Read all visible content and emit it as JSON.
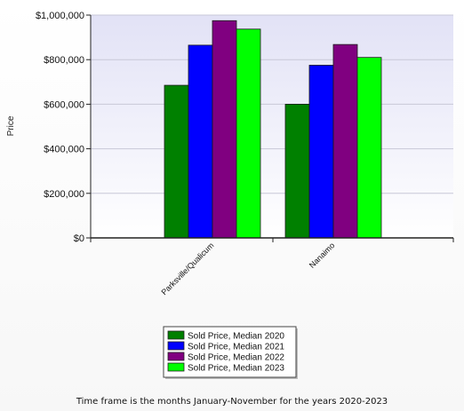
{
  "chart_data": {
    "type": "bar",
    "ylabel": "Price",
    "xlabel": "",
    "ylim": [
      0,
      1000000
    ],
    "y_ticks": [
      0,
      200000,
      400000,
      600000,
      800000,
      1000000
    ],
    "y_tick_labels": [
      "$0",
      "$200,000",
      "$400,000",
      "$600,000",
      "$800,000",
      "$1,000,000"
    ],
    "categories": [
      "Parksville/Qualicum",
      "Nanaimo"
    ],
    "series": [
      {
        "name": "Sold Price, Median 2020",
        "color": "#008000",
        "values": [
          685000,
          600000
        ]
      },
      {
        "name": "Sold Price, Median 2021",
        "color": "#0000ff",
        "values": [
          865000,
          775000
        ]
      },
      {
        "name": "Sold Price, Median 2022",
        "color": "#800080",
        "values": [
          975000,
          868000
        ]
      },
      {
        "name": "Sold Price, Median 2023",
        "color": "#00ff00",
        "values": [
          937000,
          810000
        ]
      }
    ],
    "grid": true,
    "legend_position": "bottom-center"
  },
  "footnote": "Time frame is the months January-November for the years 2020-2023"
}
